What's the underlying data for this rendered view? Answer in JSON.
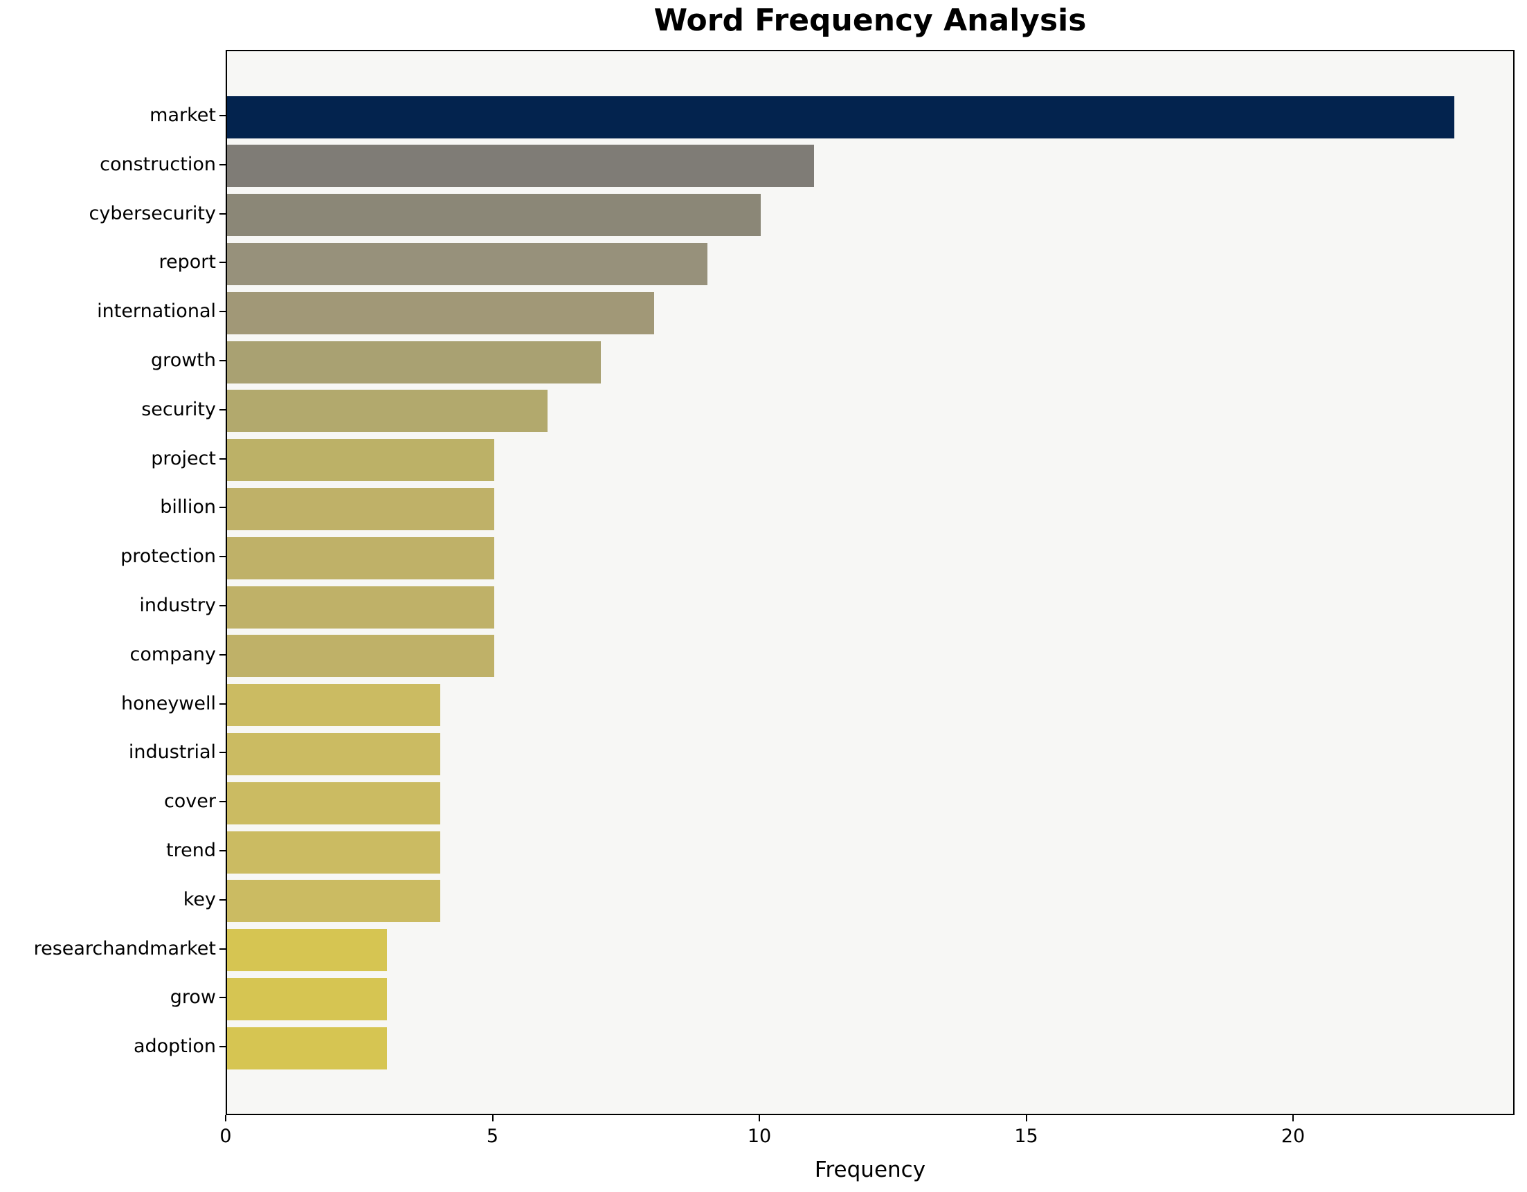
{
  "chart_data": {
    "type": "bar",
    "orientation": "horizontal",
    "title": "Word Frequency Analysis",
    "xlabel": "Frequency",
    "ylabel": "",
    "categories": [
      "market",
      "construction",
      "cybersecurity",
      "report",
      "international",
      "growth",
      "security",
      "project",
      "billion",
      "protection",
      "industry",
      "company",
      "honeywell",
      "industrial",
      "cover",
      "trend",
      "key",
      "researchandmarket",
      "grow",
      "adoption"
    ],
    "values": [
      23,
      11,
      10,
      9,
      8,
      7,
      6,
      5,
      5,
      5,
      5,
      5,
      4,
      4,
      4,
      4,
      4,
      3,
      3,
      3
    ],
    "bar_colors": [
      "#03234e",
      "#7f7c76",
      "#8b8777",
      "#97917b",
      "#a19877",
      "#a9a172",
      "#b2a96d",
      "#bcb167",
      "#bfb168",
      "#bfb168",
      "#bfb168",
      "#bfb168",
      "#cbbb62",
      "#cbbb62",
      "#cbbb62",
      "#cbbb62",
      "#cbbb62",
      "#d6c552",
      "#d6c552",
      "#d6c552"
    ],
    "xticks": [
      0,
      5,
      10,
      15,
      20
    ],
    "xlim": [
      0,
      24.15
    ],
    "grid": false,
    "legend_position": "none",
    "plot_background": "#f7f7f5",
    "figure_background": "#ffffff",
    "axis_color": "#000000"
  }
}
